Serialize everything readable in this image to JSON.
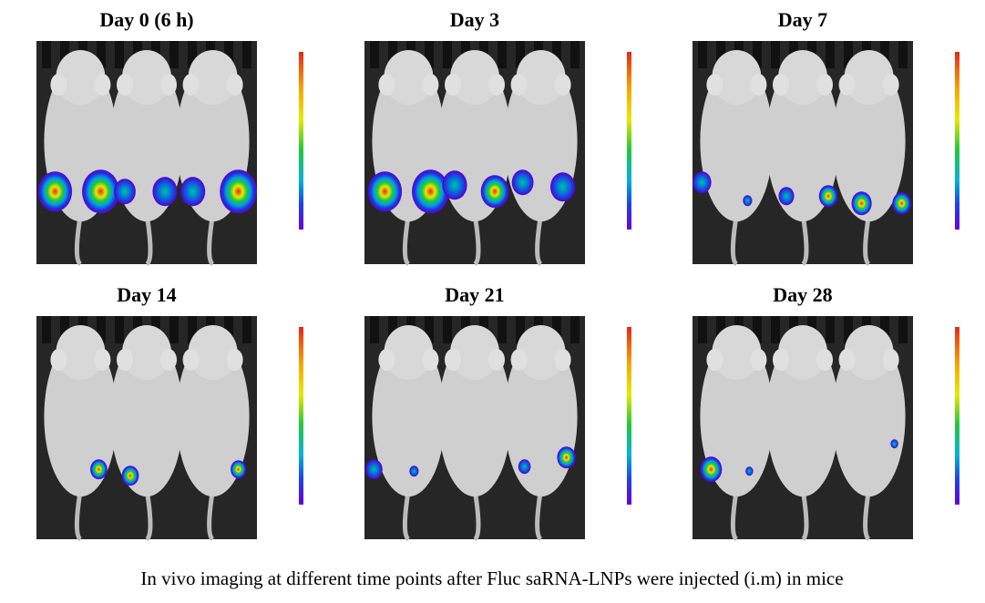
{
  "panels": [
    {
      "title": "Day 0 (6 h)"
    },
    {
      "title": "Day 3"
    },
    {
      "title": "Day 7"
    },
    {
      "title": "Day 14"
    },
    {
      "title": "Day 21"
    },
    {
      "title": "Day 28"
    }
  ],
  "caption": "In vivo imaging at different time points after Fluc saRNA-LNPs were injected (i.m) in mice"
}
